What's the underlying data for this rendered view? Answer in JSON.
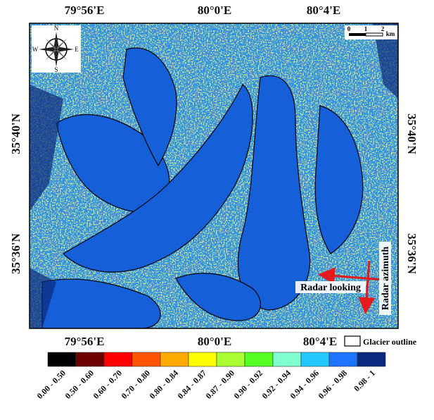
{
  "map": {
    "top_labels": [
      "79°56'E",
      "80°0'E",
      "80°4'E"
    ],
    "bottom_labels": [
      "79°56'E",
      "80°0'E",
      "80°4'E"
    ],
    "left_labels": [
      "35°40'N",
      "35°36'N"
    ],
    "right_labels": [
      "35°40'N",
      "35°36'N"
    ],
    "compass": {
      "n": "N",
      "e": "E",
      "s": "S",
      "w": "W"
    },
    "scale": {
      "ticks": [
        "0",
        "1",
        "2"
      ],
      "unit": "km"
    },
    "annotations": {
      "radar_looking": "Radar looking",
      "radar_azimuth": "Radar azimuth"
    },
    "legend": {
      "outline_label": "Glacier outline",
      "bins": [
        {
          "label": "0.00 - 0.50",
          "color": "#000000"
        },
        {
          "label": "0.50 - 0.60",
          "color": "#6e0000"
        },
        {
          "label": "0.60 - 0.70",
          "color": "#ff0000"
        },
        {
          "label": "0.70 - 0.80",
          "color": "#ff5500"
        },
        {
          "label": "0.80 - 0.84",
          "color": "#ffaa00"
        },
        {
          "label": "0.84 - 0.87",
          "color": "#ffff00"
        },
        {
          "label": "0.87 - 0.90",
          "color": "#aaff33"
        },
        {
          "label": "0.90 - 0.92",
          "color": "#55ff22"
        },
        {
          "label": "0.92 - 0.94",
          "color": "#80ffd0"
        },
        {
          "label": "0.94 - 0.96",
          "color": "#22c8ff"
        },
        {
          "label": "0.96 - 0.98",
          "color": "#1e73ff"
        },
        {
          "label": "0.98 - 1",
          "color": "#0a2a80"
        }
      ]
    }
  }
}
